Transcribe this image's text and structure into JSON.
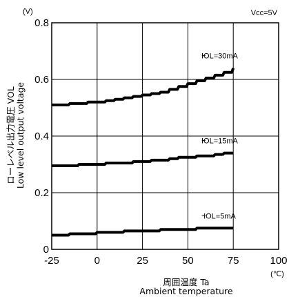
{
  "chart_data": {
    "type": "line",
    "y_unit": "(V)",
    "x_unit": "(℃)",
    "condition": "Vcc=5V",
    "xlabel_jp": "周囲温度 Ta",
    "xlabel_en": "Ambient temperature",
    "ylabel_jp": "ローレベル出力電圧 VOL",
    "ylabel_en": "Low level output voltage",
    "xlim": [
      -25,
      100
    ],
    "ylim": [
      0,
      0.8
    ],
    "x_ticks": [
      "-25",
      "0",
      "25",
      "50",
      "75",
      "100"
    ],
    "y_ticks": [
      "0",
      "0.2",
      "0.4",
      "0.6",
      "0.8"
    ],
    "grid": true,
    "series": [
      {
        "name": "IOL=30mA",
        "x": [
          -25,
          -20,
          -15,
          -10,
          -5,
          0,
          5,
          10,
          15,
          20,
          25,
          30,
          35,
          40,
          45,
          50,
          55,
          60,
          65,
          70,
          75
        ],
        "values": [
          0.51,
          0.51,
          0.515,
          0.515,
          0.52,
          0.52,
          0.525,
          0.53,
          0.535,
          0.54,
          0.545,
          0.55,
          0.555,
          0.565,
          0.575,
          0.585,
          0.595,
          0.605,
          0.615,
          0.625,
          0.64
        ]
      },
      {
        "name": "IOL=15mA",
        "x": [
          -25,
          -20,
          -15,
          -10,
          -5,
          0,
          5,
          10,
          15,
          20,
          25,
          30,
          35,
          40,
          45,
          50,
          55,
          60,
          65,
          70,
          75
        ],
        "values": [
          0.295,
          0.295,
          0.295,
          0.3,
          0.3,
          0.3,
          0.305,
          0.305,
          0.305,
          0.31,
          0.31,
          0.315,
          0.315,
          0.32,
          0.325,
          0.325,
          0.33,
          0.33,
          0.335,
          0.34,
          0.34
        ]
      },
      {
        "name": "IOL=5mA",
        "x": [
          -25,
          -20,
          -15,
          -10,
          -5,
          0,
          5,
          10,
          15,
          20,
          25,
          30,
          35,
          40,
          45,
          50,
          55,
          60,
          65,
          70,
          75
        ],
        "values": [
          0.05,
          0.05,
          0.055,
          0.055,
          0.055,
          0.06,
          0.06,
          0.06,
          0.065,
          0.065,
          0.065,
          0.065,
          0.07,
          0.07,
          0.07,
          0.07,
          0.075,
          0.075,
          0.075,
          0.075,
          0.075
        ]
      }
    ]
  }
}
